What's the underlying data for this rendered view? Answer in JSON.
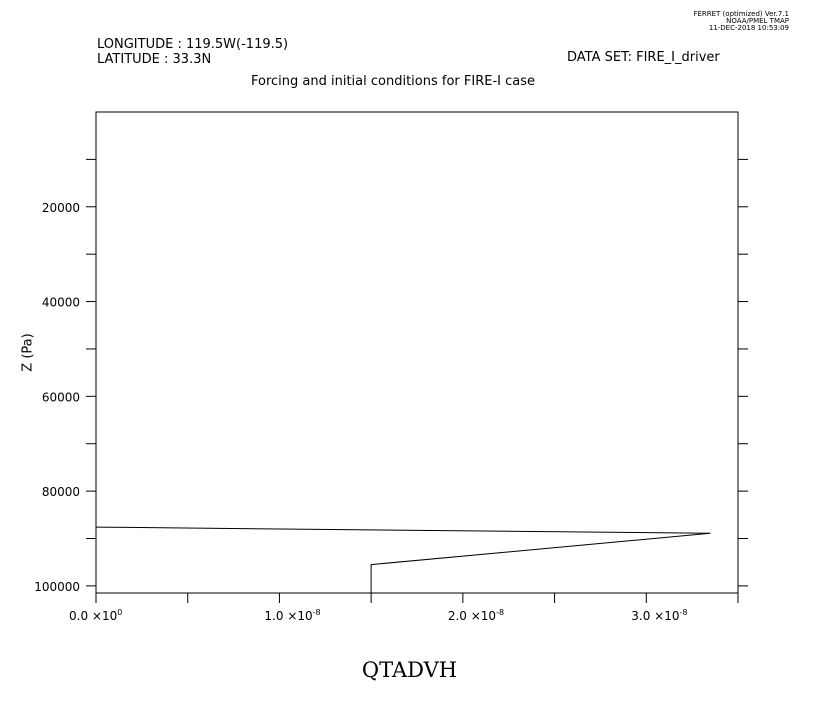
{
  "stamp": {
    "line1": "FERRET (optimized) Ver.7.1",
    "line2": "NOAA/PMEL TMAP",
    "line3": "11-DEC-2018 10:53:09"
  },
  "header": {
    "longitude": "LONGITUDE : 119.5W(-119.5)",
    "latitude": "LATITUDE : 33.3N",
    "dataset": "DATA SET: FIRE_I_driver",
    "title": "Forcing and initial conditions for FIRE-I case"
  },
  "chart_data": {
    "type": "line",
    "title": "Forcing and initial conditions for FIRE-I case",
    "xlabel": "QTADVH",
    "ylabel": "Z (Pa)",
    "xlim": [
      0,
      3.5e-08
    ],
    "ylim": [
      101500,
      0
    ],
    "y_inverted": true,
    "x_ticks": [
      {
        "value": 0,
        "mantissa": "0.0",
        "exp": "0"
      },
      {
        "value": 1e-08,
        "mantissa": "1.0",
        "exp": "-8"
      },
      {
        "value": 2e-08,
        "mantissa": "2.0",
        "exp": "-8"
      },
      {
        "value": 3e-08,
        "mantissa": "3.0",
        "exp": "-8"
      }
    ],
    "x_minor_ticks": [
      5e-09,
      1.5e-08,
      2.5e-08,
      3.5e-08
    ],
    "y_ticks": [
      20000,
      40000,
      60000,
      80000,
      100000
    ],
    "y_tick_labels": [
      "20000",
      "40000",
      "60000",
      "80000",
      "100000"
    ],
    "y_minor_ticks": [
      10000,
      30000,
      50000,
      70000,
      90000
    ],
    "series": [
      {
        "x": [
          0,
          3.35e-08,
          1.5e-08,
          1.5e-08
        ],
        "y": [
          87600,
          88900,
          95500,
          101500
        ]
      }
    ]
  }
}
